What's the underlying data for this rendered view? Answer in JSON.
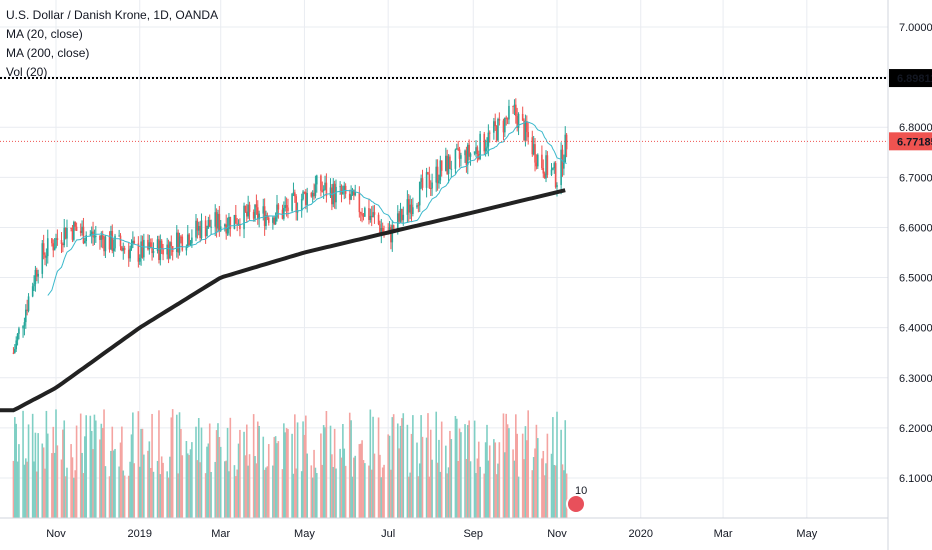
{
  "legend": {
    "symbol": "U.S. Dollar / Danish Krone, 1D, OANDA",
    "ma20": "MA (20, close)",
    "ma200": "MA (200, close)",
    "vol": "Vol (20)"
  },
  "price_badges": {
    "high_line": "6.89811",
    "last": "6.77185"
  },
  "flag_count": "10",
  "colors": {
    "up": "#26a69a",
    "down": "#ef5350",
    "vol_up": "#7fcfc4",
    "vol_down": "#f4a3a0",
    "ma20": "#3bb9cc",
    "ma200": "#222222",
    "last_line": "#ef5350",
    "grid": "#e9ecf1",
    "badge_high_bg": "#000000",
    "badge_last_bg": "#ef5350"
  },
  "chart_data": {
    "type": "candlestick",
    "y_axis": {
      "ticks": [
        "7.00000",
        "6.90000",
        "6.80000",
        "6.70000",
        "6.60000",
        "6.50000",
        "6.40000",
        "6.30000",
        "6.20000",
        "6.10000"
      ],
      "range": [
        6.0,
        7.03
      ]
    },
    "x_axis": {
      "ticks": [
        "Nov",
        "2019",
        "Mar",
        "May",
        "Jul",
        "Sep",
        "Nov",
        "2020",
        "Mar",
        "May"
      ]
    },
    "horizontal_lines": [
      {
        "value": 6.89811,
        "style": "dotted",
        "color": "#000000"
      },
      {
        "value": 6.77185,
        "style": "dotted",
        "color": "#ef5350"
      }
    ],
    "price_anchors": [
      [
        "2018-10-01",
        6.35
      ],
      [
        "2018-10-20",
        6.54
      ],
      [
        "2018-11-10",
        6.6
      ],
      [
        "2018-12-01",
        6.58
      ],
      [
        "2018-12-31",
        6.55
      ],
      [
        "2019-01-20",
        6.56
      ],
      [
        "2019-02-15",
        6.6
      ],
      [
        "2019-03-15",
        6.62
      ],
      [
        "2019-04-15",
        6.63
      ],
      [
        "2019-05-10",
        6.68
      ],
      [
        "2019-06-01",
        6.66
      ],
      [
        "2019-06-20",
        6.62
      ],
      [
        "2019-07-01",
        6.58
      ],
      [
        "2019-07-20",
        6.66
      ],
      [
        "2019-08-10",
        6.72
      ],
      [
        "2019-09-01",
        6.75
      ],
      [
        "2019-09-20",
        6.8
      ],
      [
        "2019-10-01",
        6.83
      ],
      [
        "2019-10-20",
        6.73
      ],
      [
        "2019-11-01",
        6.7
      ],
      [
        "2019-11-08",
        6.77185
      ]
    ],
    "ma200_anchors": [
      [
        "2018-10-01",
        6.235
      ],
      [
        "2018-11-01",
        6.28
      ],
      [
        "2019-01-01",
        6.4
      ],
      [
        "2019-03-01",
        6.5
      ],
      [
        "2019-05-01",
        6.55
      ],
      [
        "2019-07-01",
        6.59
      ],
      [
        "2019-09-01",
        6.63
      ],
      [
        "2019-11-08",
        6.675
      ]
    ],
    "volume_range": [
      0.0,
      1.0
    ]
  }
}
